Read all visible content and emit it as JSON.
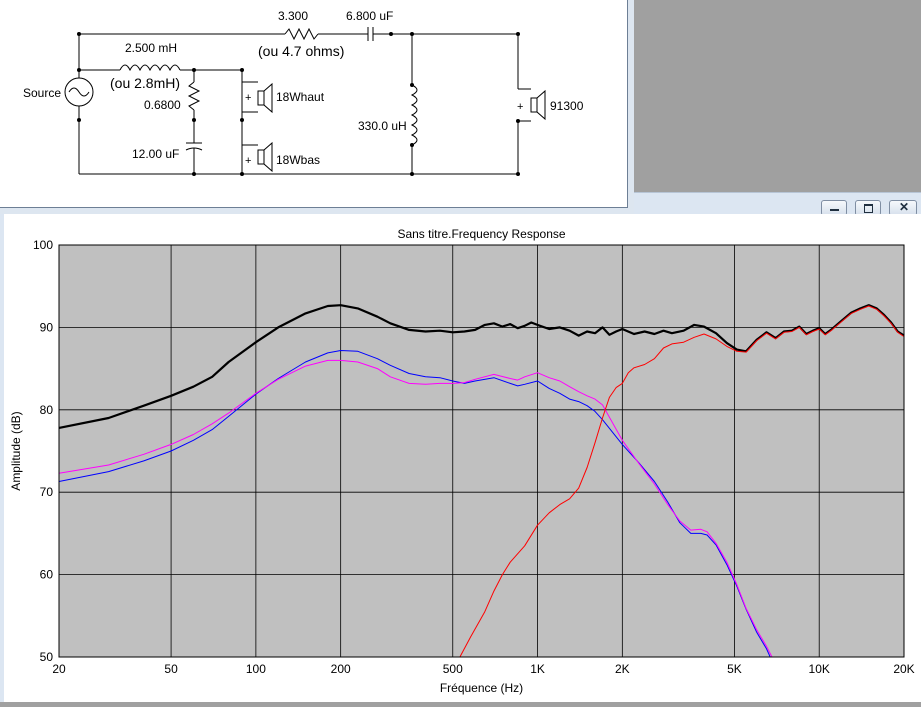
{
  "schematic": {
    "labels": {
      "resistor_series": "3.300",
      "resistor_alt": "(ou 4.7 ohms)",
      "capacitor_series": "6.800 uF",
      "inductor_main": "2.500 mH",
      "inductor_alt": "(ou 2.8mH)",
      "source": "Source",
      "resistor_shunt": "0.6800",
      "capacitor_shunt": "12.00 uF",
      "inductor_shunt": "330.0 uH",
      "driver_high": "18Whaut",
      "driver_low": "18Wbas",
      "tweeter": "91300",
      "plus": "+"
    }
  },
  "window_controls": {
    "minimize_icon": "minimize-icon",
    "restore_icon": "restore-icon",
    "close_icon": "close-icon"
  },
  "chart_data": {
    "type": "line",
    "title": "Sans titre.Frequency Response",
    "xlabel": "Fréquence (Hz)",
    "ylabel": "Amplitude (dB)",
    "x_scale": "log",
    "xlim": [
      20,
      20000
    ],
    "ylim": [
      50,
      100
    ],
    "grid": true,
    "background": "#c0c0c0",
    "x_ticks": [
      {
        "value": 20,
        "label": "20"
      },
      {
        "value": 50,
        "label": "50"
      },
      {
        "value": 100,
        "label": "100"
      },
      {
        "value": 200,
        "label": "200"
      },
      {
        "value": 500,
        "label": "500"
      },
      {
        "value": 1000,
        "label": "1K"
      },
      {
        "value": 2000,
        "label": "2K"
      },
      {
        "value": 5000,
        "label": "5K"
      },
      {
        "value": 10000,
        "label": "10K"
      },
      {
        "value": 20000,
        "label": "20K"
      }
    ],
    "y_ticks": [
      {
        "value": 50,
        "label": "50"
      },
      {
        "value": 60,
        "label": "60"
      },
      {
        "value": 70,
        "label": "70"
      },
      {
        "value": 80,
        "label": "80"
      },
      {
        "value": 90,
        "label": "90"
      },
      {
        "value": 100,
        "label": "100"
      }
    ],
    "series": [
      {
        "color": "#000000",
        "width": 2.2,
        "points": [
          [
            20,
            77.8
          ],
          [
            30,
            79
          ],
          [
            40,
            80.5
          ],
          [
            50,
            81.7
          ],
          [
            60,
            82.8
          ],
          [
            70,
            84
          ],
          [
            80,
            85.8
          ],
          [
            100,
            88.2
          ],
          [
            120,
            90
          ],
          [
            150,
            91.7
          ],
          [
            180,
            92.6
          ],
          [
            200,
            92.7
          ],
          [
            230,
            92.3
          ],
          [
            270,
            91.3
          ],
          [
            300,
            90.5
          ],
          [
            350,
            89.7
          ],
          [
            400,
            89.5
          ],
          [
            450,
            89.6
          ],
          [
            500,
            89.4
          ],
          [
            550,
            89.5
          ],
          [
            600,
            89.7
          ],
          [
            650,
            90.3
          ],
          [
            700,
            90.5
          ],
          [
            750,
            90.1
          ],
          [
            800,
            90.4
          ],
          [
            850,
            89.9
          ],
          [
            900,
            90.2
          ],
          [
            950,
            90.6
          ],
          [
            1000,
            90.3
          ],
          [
            1100,
            89.8
          ],
          [
            1200,
            90
          ],
          [
            1300,
            89.6
          ],
          [
            1400,
            89
          ],
          [
            1500,
            89.5
          ],
          [
            1600,
            89.3
          ],
          [
            1700,
            90
          ],
          [
            1800,
            89.1
          ],
          [
            1900,
            89.5
          ],
          [
            2000,
            89.8
          ],
          [
            2200,
            89.2
          ],
          [
            2400,
            89.5
          ],
          [
            2600,
            89.2
          ],
          [
            2800,
            89.6
          ],
          [
            3000,
            89.3
          ],
          [
            3300,
            89.6
          ],
          [
            3600,
            90.3
          ],
          [
            3900,
            90.1
          ],
          [
            4300,
            89.3
          ],
          [
            4700,
            88.1
          ],
          [
            5100,
            87.3
          ],
          [
            5500,
            87.1
          ],
          [
            6000,
            88.5
          ],
          [
            6500,
            89.4
          ],
          [
            7000,
            88.7
          ],
          [
            7500,
            89.5
          ],
          [
            8000,
            89.6
          ],
          [
            8500,
            90.1
          ],
          [
            9000,
            89.2
          ],
          [
            9500,
            89.6
          ],
          [
            10000,
            89.9
          ],
          [
            10500,
            89.2
          ],
          [
            11000,
            89.7
          ],
          [
            12000,
            90.8
          ],
          [
            13000,
            91.8
          ],
          [
            14000,
            92.3
          ],
          [
            15000,
            92.7
          ],
          [
            16000,
            92.3
          ],
          [
            17000,
            91.5
          ],
          [
            18000,
            90.6
          ],
          [
            19000,
            89.5
          ],
          [
            20000,
            89
          ]
        ]
      },
      {
        "color": "#0000ff",
        "width": 1,
        "points": [
          [
            20,
            71.3
          ],
          [
            30,
            72.5
          ],
          [
            40,
            73.8
          ],
          [
            50,
            75
          ],
          [
            60,
            76.3
          ],
          [
            70,
            77.6
          ],
          [
            80,
            79.2
          ],
          [
            100,
            81.9
          ],
          [
            120,
            83.8
          ],
          [
            150,
            85.8
          ],
          [
            180,
            86.9
          ],
          [
            200,
            87.2
          ],
          [
            230,
            87.1
          ],
          [
            270,
            86.2
          ],
          [
            300,
            85.4
          ],
          [
            350,
            84.4
          ],
          [
            400,
            84
          ],
          [
            450,
            83.9
          ],
          [
            500,
            83.5
          ],
          [
            550,
            83.2
          ],
          [
            600,
            83.5
          ],
          [
            700,
            83.9
          ],
          [
            800,
            83.2
          ],
          [
            850,
            82.9
          ],
          [
            900,
            83.1
          ],
          [
            1000,
            83.5
          ],
          [
            1100,
            82.6
          ],
          [
            1200,
            82
          ],
          [
            1300,
            81.3
          ],
          [
            1400,
            81
          ],
          [
            1500,
            80.5
          ],
          [
            1600,
            79.8
          ],
          [
            1700,
            78.8
          ],
          [
            2000,
            75.8
          ],
          [
            2300,
            73.5
          ],
          [
            2600,
            71.3
          ],
          [
            2900,
            68.8
          ],
          [
            3200,
            66.3
          ],
          [
            3500,
            65
          ],
          [
            3800,
            65
          ],
          [
            4000,
            64.8
          ],
          [
            4300,
            63.6
          ],
          [
            4700,
            61.2
          ],
          [
            5100,
            58.6
          ],
          [
            5500,
            55.8
          ],
          [
            6000,
            53
          ],
          [
            6500,
            51
          ],
          [
            6700,
            50
          ]
        ]
      },
      {
        "color": "#ff00ff",
        "width": 1,
        "points": [
          [
            20,
            72.3
          ],
          [
            30,
            73.3
          ],
          [
            40,
            74.6
          ],
          [
            50,
            75.8
          ],
          [
            60,
            77
          ],
          [
            70,
            78.3
          ],
          [
            80,
            79.6
          ],
          [
            100,
            82
          ],
          [
            120,
            83.7
          ],
          [
            150,
            85.3
          ],
          [
            180,
            86
          ],
          [
            200,
            86
          ],
          [
            230,
            85.8
          ],
          [
            270,
            85
          ],
          [
            300,
            84
          ],
          [
            350,
            83.2
          ],
          [
            400,
            83.1
          ],
          [
            450,
            83.2
          ],
          [
            500,
            83.2
          ],
          [
            550,
            83.3
          ],
          [
            600,
            83.7
          ],
          [
            700,
            84.3
          ],
          [
            800,
            83.8
          ],
          [
            850,
            83.6
          ],
          [
            900,
            84
          ],
          [
            1000,
            84.5
          ],
          [
            1100,
            83.9
          ],
          [
            1200,
            83.5
          ],
          [
            1300,
            82.8
          ],
          [
            1400,
            82.2
          ],
          [
            1500,
            81.7
          ],
          [
            1600,
            81.3
          ],
          [
            1700,
            80.6
          ],
          [
            2000,
            76.3
          ],
          [
            2300,
            73.4
          ],
          [
            2600,
            71
          ],
          [
            2900,
            68.5
          ],
          [
            3200,
            66.5
          ],
          [
            3500,
            65.4
          ],
          [
            3800,
            65.5
          ],
          [
            4000,
            65.2
          ],
          [
            4300,
            63.8
          ],
          [
            4700,
            61.5
          ],
          [
            5100,
            58.8
          ],
          [
            5500,
            55.9
          ],
          [
            6000,
            53.3
          ],
          [
            6500,
            51.3
          ],
          [
            6800,
            50
          ]
        ]
      },
      {
        "color": "#ff0000",
        "width": 1,
        "points": [
          [
            530,
            50
          ],
          [
            580,
            52.5
          ],
          [
            650,
            55.5
          ],
          [
            700,
            58
          ],
          [
            750,
            60
          ],
          [
            800,
            61.5
          ],
          [
            900,
            63.5
          ],
          [
            1000,
            66
          ],
          [
            1100,
            67.5
          ],
          [
            1200,
            68.5
          ],
          [
            1300,
            69.2
          ],
          [
            1400,
            70.5
          ],
          [
            1500,
            73
          ],
          [
            1600,
            76
          ],
          [
            1700,
            79
          ],
          [
            1800,
            81.5
          ],
          [
            1900,
            82.7
          ],
          [
            2000,
            83.2
          ],
          [
            2100,
            84.5
          ],
          [
            2200,
            85.1
          ],
          [
            2400,
            85.5
          ],
          [
            2600,
            86.2
          ],
          [
            2800,
            87.5
          ],
          [
            3000,
            88
          ],
          [
            3300,
            88.2
          ],
          [
            3600,
            88.8
          ],
          [
            3900,
            89.2
          ],
          [
            4300,
            88.6
          ],
          [
            4700,
            87.7
          ],
          [
            5100,
            87.1
          ],
          [
            5500,
            87
          ],
          [
            6000,
            88.4
          ],
          [
            6500,
            89.3
          ],
          [
            7000,
            88.6
          ],
          [
            7500,
            89.4
          ],
          [
            8000,
            89.5
          ],
          [
            8500,
            90
          ],
          [
            9000,
            89.1
          ],
          [
            9500,
            89.5
          ],
          [
            10000,
            89.8
          ],
          [
            10500,
            89.1
          ],
          [
            11000,
            89.6
          ],
          [
            12000,
            90.7
          ],
          [
            13000,
            91.7
          ],
          [
            14000,
            92.2
          ],
          [
            15000,
            92.6
          ],
          [
            16000,
            92.2
          ],
          [
            17000,
            91.4
          ],
          [
            18000,
            90.5
          ],
          [
            19000,
            89.4
          ],
          [
            20000,
            88.9
          ]
        ]
      }
    ]
  }
}
